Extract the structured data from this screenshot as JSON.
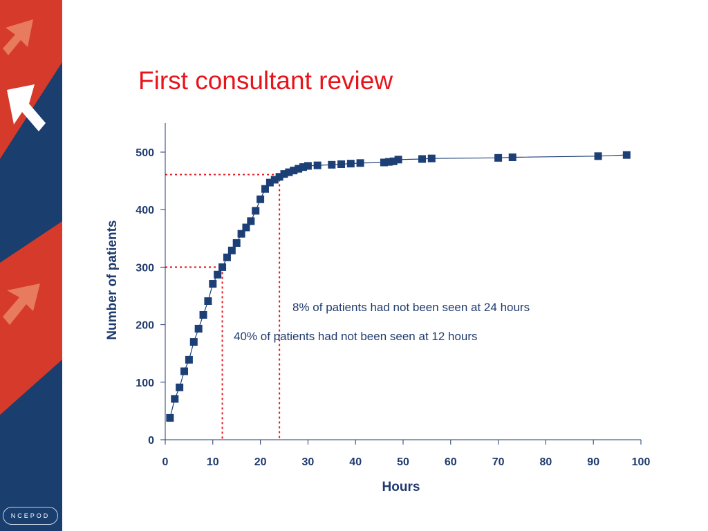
{
  "slide": {
    "title": "First consultant review",
    "logo_text": "NCEPOD"
  },
  "colors": {
    "title": "#e8141b",
    "sidebar_blue": "#1a3e6e",
    "sidebar_red": "#d63a2a",
    "marker": "#1c3f75",
    "reference_line": "#e8141b",
    "text": "#1f3a6e"
  },
  "chart_data": {
    "type": "scatter",
    "title": "",
    "xlabel": "Hours",
    "ylabel": "Number of patients",
    "xlim": [
      0,
      100
    ],
    "ylim": [
      0,
      500
    ],
    "x_ticks": [
      0,
      10,
      20,
      30,
      40,
      50,
      60,
      70,
      80,
      90,
      100
    ],
    "y_ticks": [
      0,
      100,
      200,
      300,
      400,
      500
    ],
    "grid": false,
    "marker": "square",
    "connected": true,
    "series": [
      {
        "x": [
          1,
          2,
          3,
          4,
          5,
          6,
          7,
          8,
          9,
          10,
          11,
          12,
          13,
          14,
          15,
          16,
          17,
          18,
          19,
          20,
          21,
          22,
          23,
          24,
          25,
          26,
          27,
          28,
          29,
          30,
          32,
          35,
          37,
          39,
          41,
          46,
          47,
          48,
          49,
          54,
          56,
          70,
          73,
          91,
          97
        ],
        "y": [
          38,
          71,
          91,
          119,
          139,
          170,
          193,
          217,
          241,
          271,
          287,
          300,
          317,
          329,
          342,
          358,
          369,
          380,
          398,
          418,
          436,
          447,
          452,
          457,
          462,
          465,
          468,
          471,
          474,
          476,
          477,
          478,
          479,
          480,
          481,
          482,
          483,
          484,
          487,
          488,
          489,
          490,
          491,
          493,
          495
        ]
      }
    ],
    "reference_lines": [
      {
        "x": 12,
        "y": 300
      },
      {
        "x": 24,
        "y": 461
      }
    ],
    "annotations": [
      "8% of patients had not been seen at 24 hours",
      "40% of patients had not been seen at 12 hours"
    ]
  }
}
